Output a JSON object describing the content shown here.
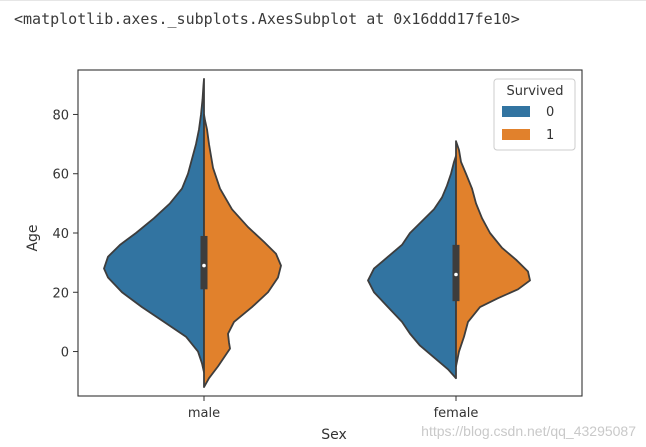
{
  "output": {
    "repr": "<matplotlib.axes._subplots.AxesSubplot at 0x16ddd17fe10>"
  },
  "watermark": "https://blog.csdn.net/qq_43295087",
  "chart_data": {
    "type": "violin",
    "split": true,
    "title": "",
    "xlabel": "Sex",
    "ylabel": "Age",
    "categories": [
      "male",
      "female"
    ],
    "ylim": [
      -15,
      95
    ],
    "yticks": [
      0,
      20,
      40,
      60,
      80
    ],
    "grid": false,
    "legend": {
      "title": "Survived",
      "position": "top-right"
    },
    "series": [
      {
        "name": "0",
        "color": "#3274a1",
        "side": "left"
      },
      {
        "name": "1",
        "color": "#e1812c",
        "side": "right"
      }
    ],
    "violins": [
      {
        "category": "male",
        "survived_0": {
          "range": [
            -7,
            92
          ],
          "profile": [
            [
              -7,
              0
            ],
            [
              -4,
              0.02
            ],
            [
              0,
              0.06
            ],
            [
              5,
              0.18
            ],
            [
              10,
              0.4
            ],
            [
              15,
              0.62
            ],
            [
              20,
              0.82
            ],
            [
              25,
              0.96
            ],
            [
              28,
              1.0
            ],
            [
              32,
              0.96
            ],
            [
              36,
              0.84
            ],
            [
              40,
              0.68
            ],
            [
              45,
              0.5
            ],
            [
              50,
              0.34
            ],
            [
              55,
              0.22
            ],
            [
              60,
              0.16
            ],
            [
              65,
              0.12
            ],
            [
              70,
              0.08
            ],
            [
              75,
              0.05
            ],
            [
              80,
              0.03
            ],
            [
              85,
              0.015
            ],
            [
              90,
              0.005
            ],
            [
              92,
              0
            ]
          ]
        },
        "survived_1": {
          "range": [
            -12,
            80
          ],
          "profile": [
            [
              -12,
              0
            ],
            [
              -9,
              0.05
            ],
            [
              -5,
              0.14
            ],
            [
              -2,
              0.2
            ],
            [
              1,
              0.26
            ],
            [
              3,
              0.25
            ],
            [
              6,
              0.24
            ],
            [
              10,
              0.3
            ],
            [
              15,
              0.48
            ],
            [
              20,
              0.64
            ],
            [
              25,
              0.74
            ],
            [
              29,
              0.77
            ],
            [
              33,
              0.72
            ],
            [
              37,
              0.6
            ],
            [
              42,
              0.44
            ],
            [
              48,
              0.28
            ],
            [
              55,
              0.16
            ],
            [
              62,
              0.09
            ],
            [
              70,
              0.05
            ],
            [
              75,
              0.03
            ],
            [
              78,
              0.01
            ],
            [
              80,
              0
            ]
          ]
        },
        "box": {
          "q1": 21,
          "median": 29,
          "q3": 39
        }
      },
      {
        "category": "female",
        "survived_0": {
          "range": [
            -9,
            66
          ],
          "profile": [
            [
              -9,
              0
            ],
            [
              -6,
              0.08
            ],
            [
              -2,
              0.22
            ],
            [
              2,
              0.36
            ],
            [
              6,
              0.46
            ],
            [
              10,
              0.54
            ],
            [
              15,
              0.68
            ],
            [
              20,
              0.82
            ],
            [
              24,
              0.88
            ],
            [
              28,
              0.82
            ],
            [
              32,
              0.68
            ],
            [
              36,
              0.54
            ],
            [
              40,
              0.46
            ],
            [
              44,
              0.34
            ],
            [
              48,
              0.22
            ],
            [
              52,
              0.14
            ],
            [
              56,
              0.09
            ],
            [
              60,
              0.05
            ],
            [
              64,
              0.02
            ],
            [
              66,
              0
            ]
          ]
        },
        "survived_1": {
          "range": [
            -5,
            71
          ],
          "profile": [
            [
              -5,
              0
            ],
            [
              0,
              0.03
            ],
            [
              5,
              0.08
            ],
            [
              10,
              0.12
            ],
            [
              15,
              0.24
            ],
            [
              18,
              0.42
            ],
            [
              21,
              0.62
            ],
            [
              24,
              0.74
            ],
            [
              27,
              0.72
            ],
            [
              31,
              0.6
            ],
            [
              35,
              0.46
            ],
            [
              40,
              0.34
            ],
            [
              45,
              0.26
            ],
            [
              50,
              0.2
            ],
            [
              55,
              0.16
            ],
            [
              60,
              0.1
            ],
            [
              64,
              0.05
            ],
            [
              68,
              0.03
            ],
            [
              71,
              0
            ]
          ]
        },
        "box": {
          "q1": 17,
          "median": 26,
          "q3": 36
        }
      }
    ]
  }
}
